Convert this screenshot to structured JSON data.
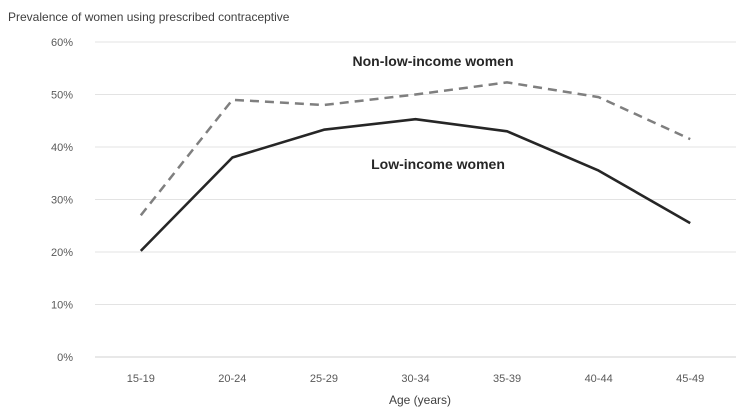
{
  "chart_data": {
    "type": "line",
    "title": "",
    "ylabel": "Prevalence of women using prescribed contraceptive",
    "xlabel": "Age (years)",
    "categories": [
      "15-19",
      "20-24",
      "25-29",
      "30-34",
      "35-39",
      "40-44",
      "45-49"
    ],
    "ylim": [
      0,
      60
    ],
    "yticks": [
      0,
      10,
      20,
      30,
      40,
      50,
      60
    ],
    "ytick_labels": [
      "0%",
      "10%",
      "20%",
      "30%",
      "40%",
      "50%",
      "60%"
    ],
    "grid": true,
    "legend": "none",
    "series": [
      {
        "name": "Non-low-income women",
        "values": [
          27,
          49,
          48,
          50,
          52.3,
          49.5,
          41.5
        ],
        "color": "#7f7f7f",
        "style": "dashed"
      },
      {
        "name": "Low-income women",
        "values": [
          20.2,
          38,
          43.3,
          45.3,
          43,
          35.5,
          25.5
        ],
        "color": "#262626",
        "style": "solid"
      }
    ]
  }
}
